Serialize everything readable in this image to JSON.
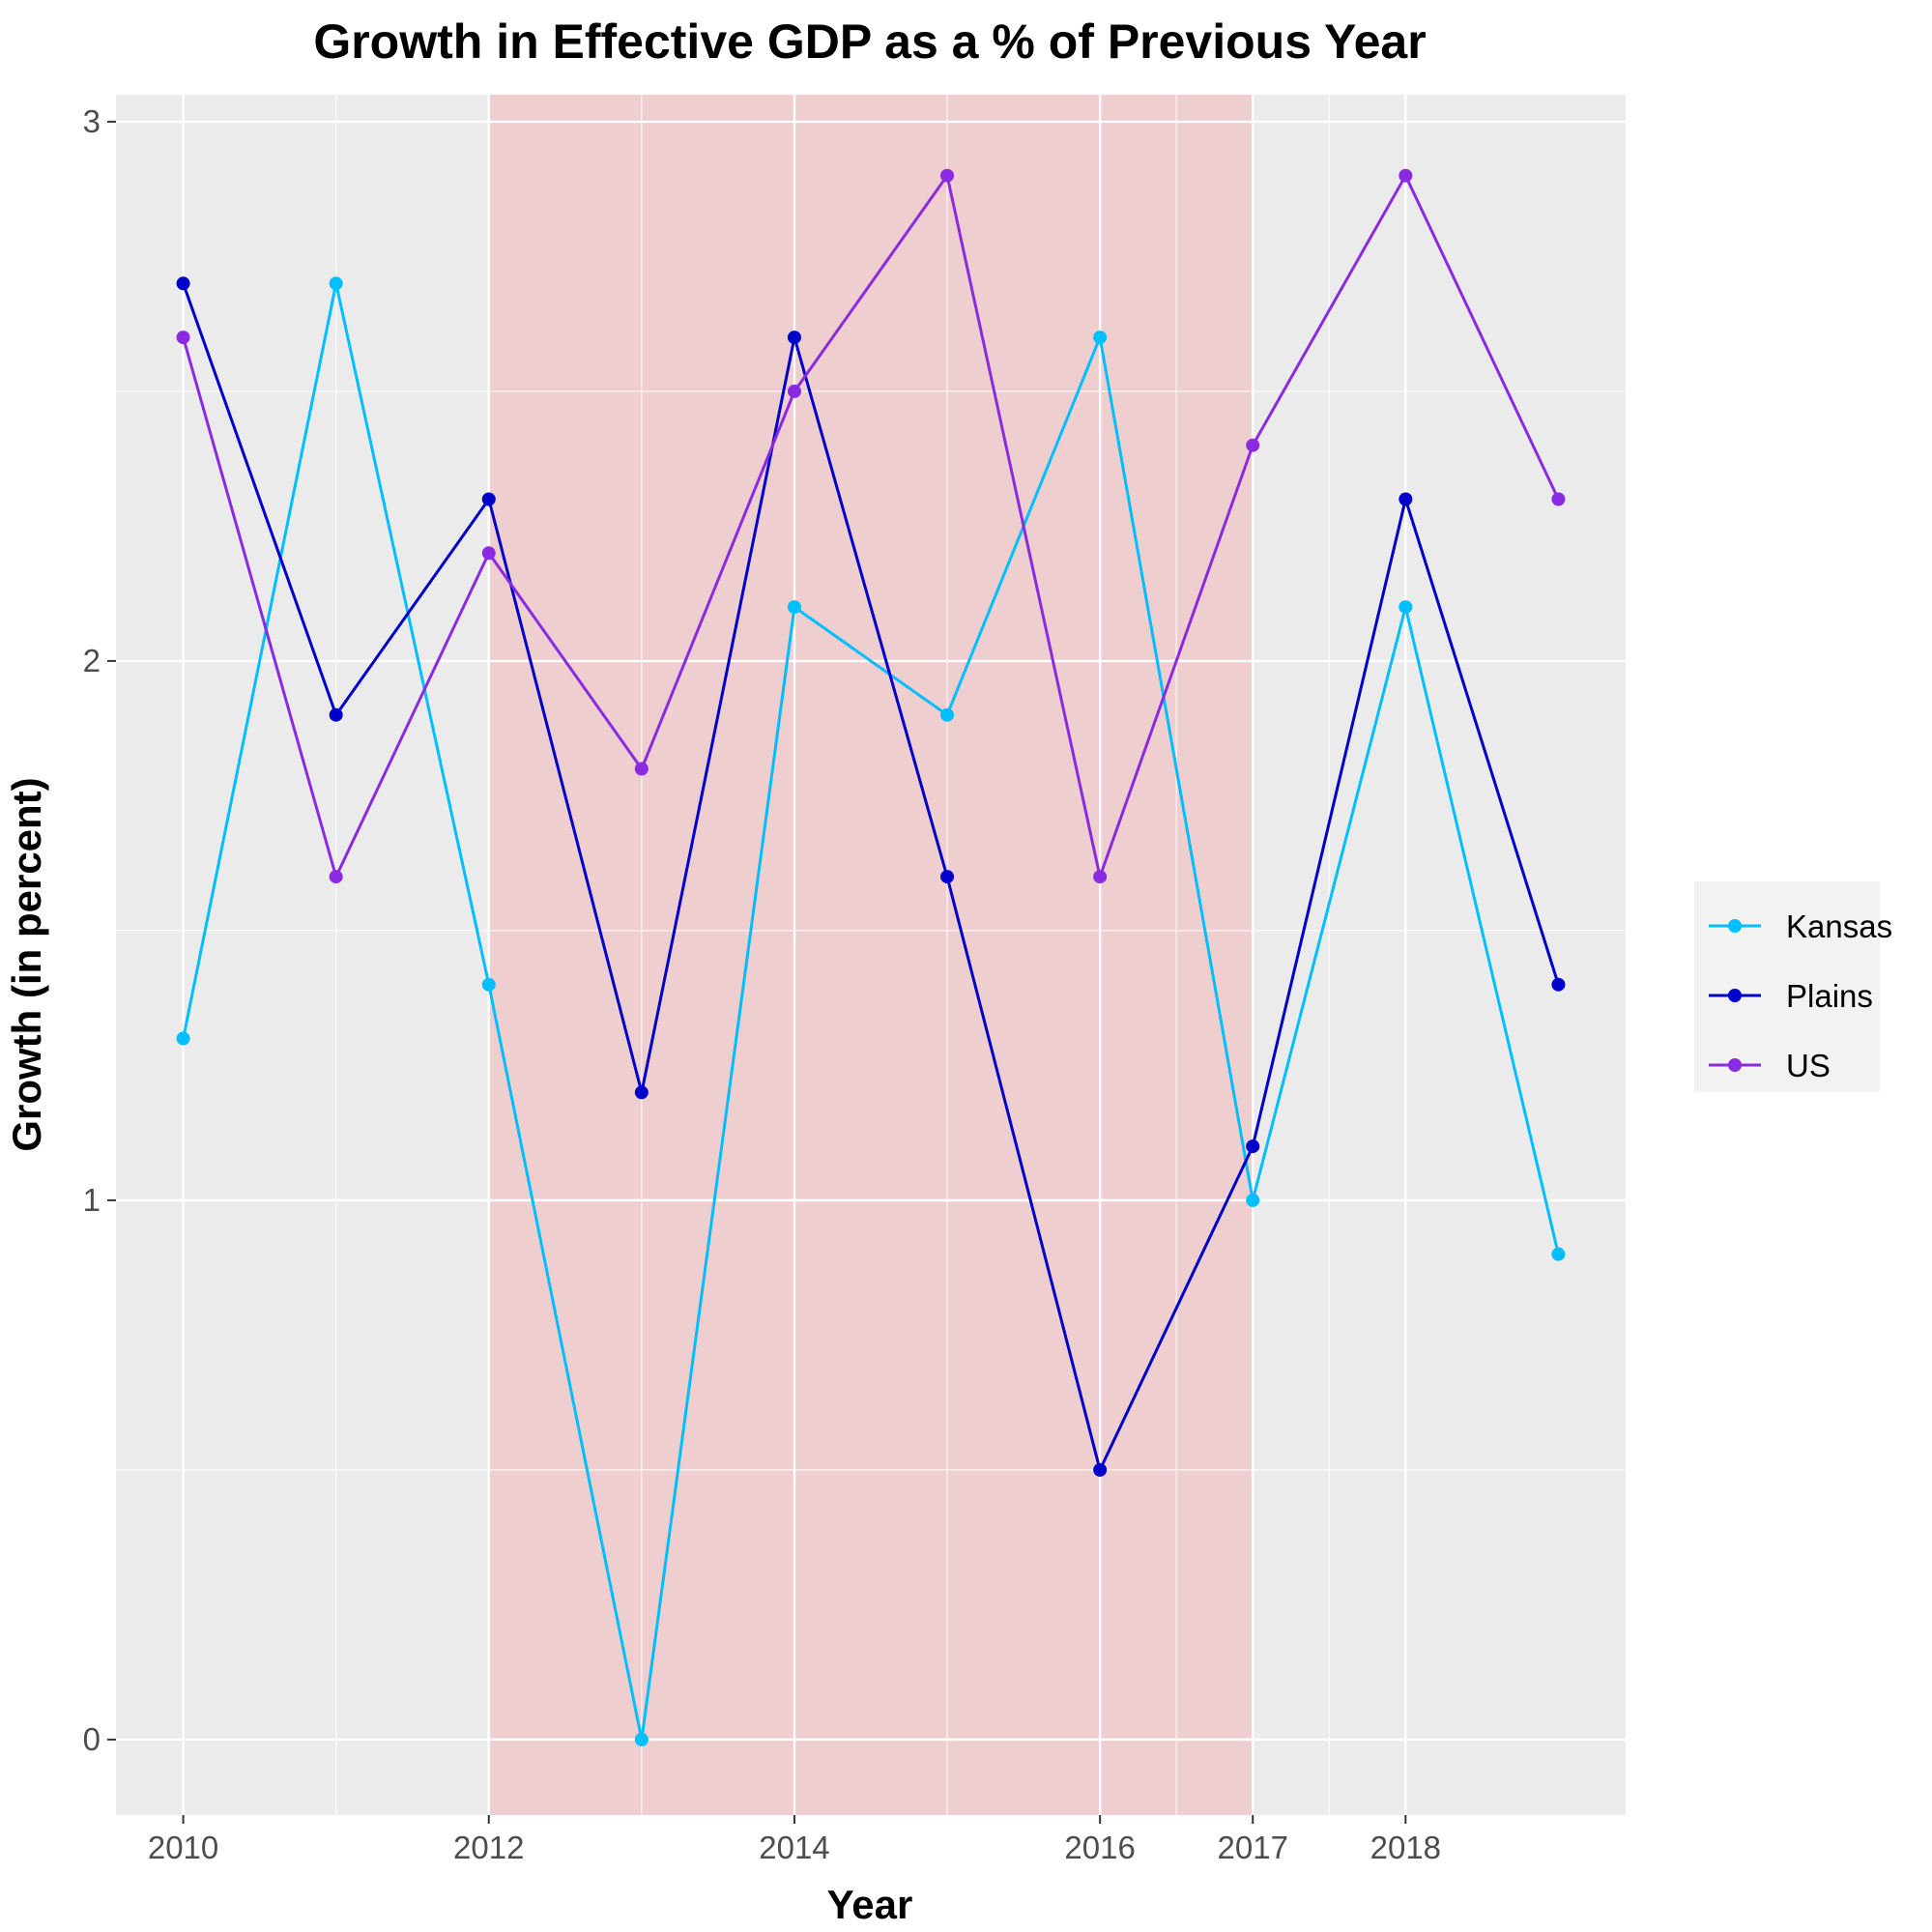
{
  "chart_data": {
    "type": "line",
    "title": "Growth in Effective GDP as a % of Previous Year",
    "xlabel": "Year",
    "ylabel": "Growth (in percent)",
    "x": [
      2010,
      2011,
      2012,
      2013,
      2014,
      2015,
      2016,
      2017,
      2018,
      2019
    ],
    "x_ticks": [
      2010,
      2012,
      2014,
      2016,
      2017,
      2018
    ],
    "xlim": [
      2009.56,
      2019.44
    ],
    "y_ticks": [
      0,
      1,
      2,
      3
    ],
    "ylim": [
      -0.14,
      3.05
    ],
    "highlight_region": {
      "x_start": 2012,
      "x_end": 2017,
      "color": "#f0c4c7"
    },
    "grid": true,
    "legend_position": "right",
    "series": [
      {
        "name": "Kansas",
        "color": "#00bfff",
        "values": [
          1.3,
          2.7,
          1.4,
          0.0,
          2.1,
          1.9,
          2.6,
          1.0,
          2.1,
          0.9
        ]
      },
      {
        "name": "Plains",
        "color": "#0000cd",
        "values": [
          2.7,
          1.9,
          2.3,
          1.2,
          2.6,
          1.6,
          0.5,
          1.1,
          2.3,
          1.4
        ]
      },
      {
        "name": "US",
        "color": "#8a2be2",
        "values": [
          2.6,
          1.6,
          2.2,
          1.8,
          2.5,
          2.9,
          1.6,
          2.4,
          2.9,
          2.3
        ]
      }
    ]
  }
}
